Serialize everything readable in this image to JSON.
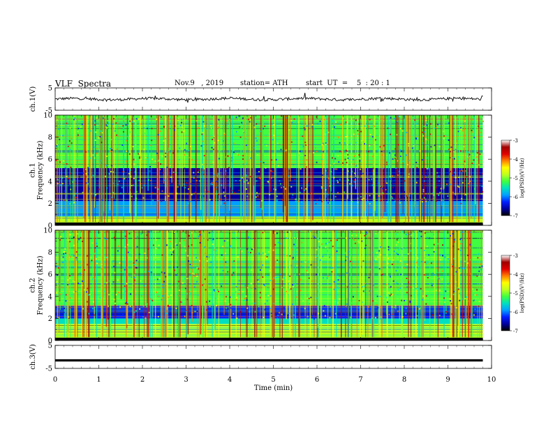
{
  "header": {
    "title": "VLF  Spectra",
    "date": "Nov.9   , 2019",
    "station": "station= ATH",
    "start": "start  UT  =    5  : 20 : 1"
  },
  "chart_data": [
    {
      "type": "line",
      "id": "ch1-waveform",
      "ylabel": "ch.1(V)",
      "ylim": [
        -5,
        5
      ],
      "yticks": [
        "5",
        "-5"
      ],
      "x_range": [
        0,
        9.8
      ],
      "baseline": 0,
      "noise_amplitude": 1,
      "color": "#000000"
    },
    {
      "type": "heatmap",
      "id": "ch1-spectrogram",
      "ylabel": "ch.1\nFrequency  (kHz)",
      "ylim": [
        0,
        10
      ],
      "yticks": [
        "0",
        "2",
        "4",
        "6",
        "8",
        "10"
      ],
      "x_range": [
        0,
        9.8
      ],
      "bands": [
        {
          "from": 0,
          "to": 0.2,
          "level": -7
        },
        {
          "from": 0.2,
          "to": 0.8,
          "level": -4.8
        },
        {
          "from": 0.8,
          "to": 2.2,
          "level": -5.8
        },
        {
          "from": 2.2,
          "to": 5.2,
          "level": -6.4
        },
        {
          "from": 5.2,
          "to": 10,
          "level": -4.9
        }
      ],
      "colorbar": {
        "label": "log(PSD)(V²/Hz)",
        "ticks": [
          "-3",
          "-4",
          "-5",
          "-6",
          "-7"
        ],
        "range": [
          -7,
          -3
        ]
      }
    },
    {
      "type": "heatmap",
      "id": "ch2-spectrogram",
      "ylabel": "ch.2\nFrequency  (kHz)",
      "ylim": [
        0,
        10
      ],
      "yticks": [
        "0",
        "2",
        "4",
        "6",
        "8",
        "10"
      ],
      "x_range": [
        0,
        9.8
      ],
      "bands": [
        {
          "from": 0,
          "to": 0.2,
          "level": -7
        },
        {
          "from": 0.2,
          "to": 1.5,
          "level": -4.8
        },
        {
          "from": 1.5,
          "to": 2.0,
          "level": -5.6
        },
        {
          "from": 2.0,
          "to": 3.2,
          "level": -6.1
        },
        {
          "from": 3.2,
          "to": 10,
          "level": -5.0
        }
      ],
      "colorbar": {
        "label": "log(PSD)(V²/Hz)",
        "ticks": [
          "-3",
          "-4",
          "-5",
          "-6",
          "-7"
        ],
        "range": [
          -7,
          -3
        ]
      }
    },
    {
      "type": "line",
      "id": "ch3-waveform",
      "ylabel": "ch.3(V)",
      "ylim": [
        -5,
        5
      ],
      "yticks": [
        "5",
        "-5"
      ],
      "x_range": [
        0,
        9.8
      ],
      "baseline": -1.5,
      "noise_amplitude": 0,
      "color": "#000000"
    }
  ],
  "x_axis": {
    "label": "Time  (min)",
    "ticks": [
      "0",
      "1",
      "2",
      "3",
      "4",
      "5",
      "6",
      "7",
      "8",
      "9",
      "10"
    ],
    "range": [
      0,
      10
    ]
  },
  "colormap": [
    "#000000",
    "#0000a0",
    "#0020ff",
    "#00a0ff",
    "#00e0c0",
    "#40ff40",
    "#c0ff20",
    "#ffff00",
    "#ff8000",
    "#e00000",
    "#a00000",
    "#ffffff"
  ]
}
